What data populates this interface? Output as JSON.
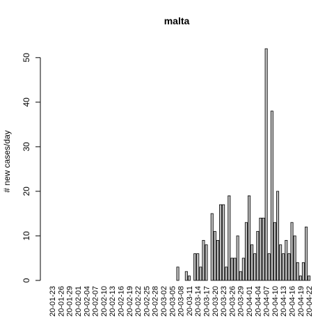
{
  "chart_data": {
    "type": "bar",
    "title": "malta",
    "xlabel": "",
    "ylabel": "# new cases/day",
    "ylim": [
      0,
      52
    ],
    "yticks": [
      0,
      10,
      20,
      30,
      40,
      50
    ],
    "xtick_labels": [
      "20-01-23",
      "20-01-26",
      "20-01-29",
      "20-02-01",
      "20-02-04",
      "20-02-07",
      "20-02-10",
      "20-02-13",
      "20-02-16",
      "20-02-19",
      "20-02-22",
      "20-02-25",
      "20-02-28",
      "20-03-02",
      "20-03-05",
      "20-03-08",
      "20-03-11",
      "20-03-14",
      "20-03-17",
      "20-03-20",
      "20-03-23",
      "20-03-26",
      "20-03-29",
      "20-04-01",
      "20-04-04",
      "20-04-07",
      "20-04-10",
      "20-04-13",
      "20-04-16",
      "20-04-19",
      "20-04-22"
    ],
    "start_date": "2020-01-23",
    "values": [
      0,
      0,
      0,
      0,
      0,
      0,
      0,
      0,
      0,
      0,
      0,
      0,
      0,
      0,
      0,
      0,
      0,
      0,
      0,
      0,
      0,
      0,
      0,
      0,
      0,
      0,
      0,
      0,
      0,
      0,
      0,
      0,
      0,
      0,
      0,
      0,
      0,
      0,
      0,
      0,
      0,
      0,
      0,
      0,
      3,
      0,
      0,
      2,
      1,
      0,
      6,
      6,
      3,
      9,
      8,
      0,
      15,
      11,
      9,
      17,
      17,
      3,
      19,
      5,
      5,
      10,
      2,
      5,
      13,
      19,
      8,
      6,
      11,
      14,
      14,
      52,
      6,
      38,
      13,
      20,
      8,
      6,
      9,
      6,
      13,
      10,
      4,
      1,
      4,
      12,
      1
    ],
    "bar_color": "#bebebe",
    "bar_stroke": "#000000",
    "grid": false,
    "legend": "none"
  }
}
